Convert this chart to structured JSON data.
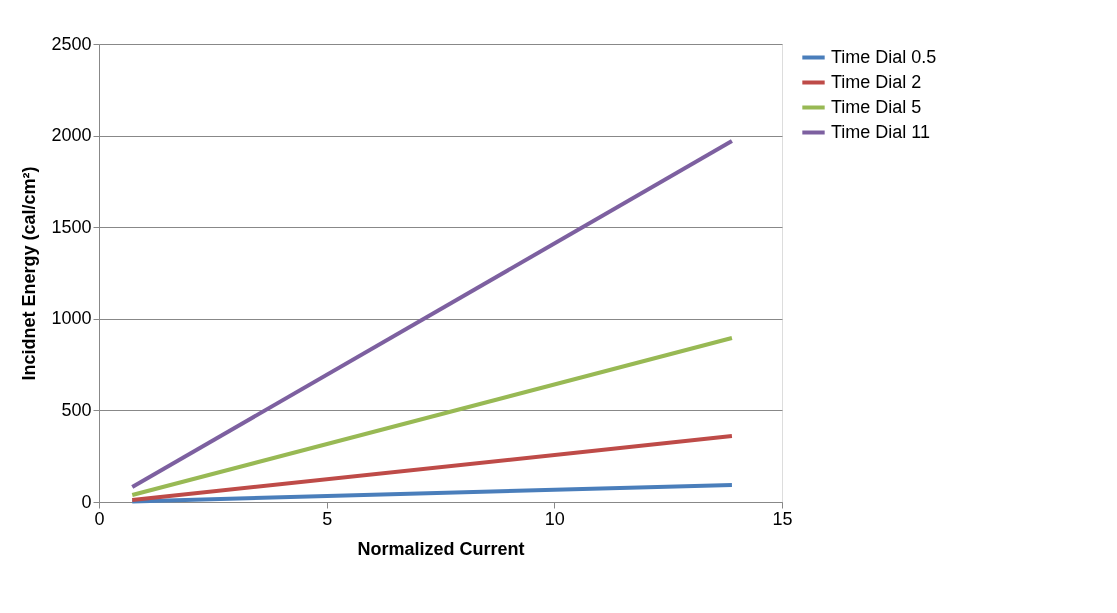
{
  "chart_data": {
    "type": "line",
    "xlabel": "Normalized Current",
    "ylabel": "Incidnet Energy (cal/cm²)",
    "x": [
      0.73,
      13.9
    ],
    "series": [
      {
        "name": "Time Dial 0.5",
        "color": "#4a7ebb",
        "values": [
          3,
          93
        ]
      },
      {
        "name": "Time Dial 2",
        "color": "#be4b48",
        "values": [
          11,
          360
        ]
      },
      {
        "name": "Time Dial 5",
        "color": "#98b954",
        "values": [
          38,
          895
        ]
      },
      {
        "name": "Time Dial 11",
        "color": "#7d60a0",
        "values": [
          82,
          1970
        ]
      }
    ],
    "xlim": [
      0,
      15
    ],
    "xticks": [
      0,
      5,
      10,
      15
    ],
    "ylim": [
      0,
      2500
    ],
    "yticks": [
      0,
      500,
      1000,
      1500,
      2000,
      2500
    ],
    "grid": "y",
    "legend": "right",
    "marker": "none",
    "line_style": "solid"
  }
}
